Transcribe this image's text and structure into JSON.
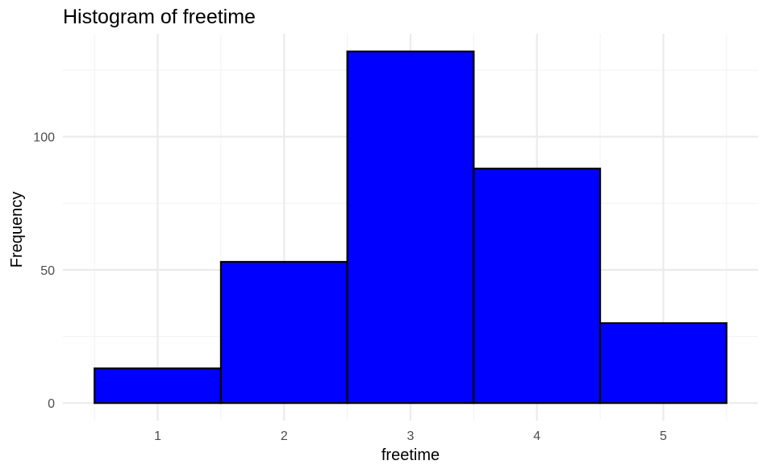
{
  "chart_data": {
    "type": "bar",
    "title": "Histogram of freetime",
    "xlabel": "freetime",
    "ylabel": "Frequency",
    "categories": [
      "1",
      "2",
      "3",
      "4",
      "5"
    ],
    "x": [
      1,
      2,
      3,
      4,
      5
    ],
    "values": [
      13,
      53,
      132,
      88,
      30
    ],
    "bin_width": 1,
    "xlim": [
      0.25,
      5.75
    ],
    "ylim": [
      -6.6,
      138.6
    ],
    "x_ticks": [
      1,
      2,
      3,
      4,
      5
    ],
    "y_ticks": [
      0,
      50,
      100
    ],
    "y_tick_labels": [
      "0",
      "50",
      "100"
    ],
    "grid": true,
    "legend": "none",
    "colors": {
      "bar_fill": "#0000ff",
      "bar_outline": "#000000",
      "grid_major": "#ebebeb",
      "grid_minor": "#f3f3f3",
      "tick_text": "#4d4d4d"
    }
  }
}
